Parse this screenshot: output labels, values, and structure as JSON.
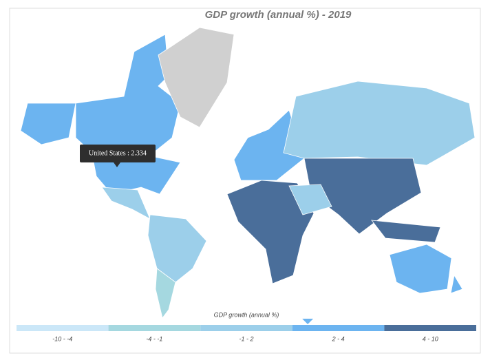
{
  "title": "GDP growth (annual %) - 2019",
  "tooltip": {
    "label": "United States : 2.334",
    "value": 2.334
  },
  "legend": {
    "title": "GDP growth (annual %)",
    "items": [
      {
        "range": [
          -10,
          -4
        ],
        "label": "-10 - -4",
        "color": "#cbe7f8"
      },
      {
        "range": [
          -4,
          -1
        ],
        "label": "-4 - -1",
        "color": "#a5d8e0"
      },
      {
        "range": [
          -1,
          2
        ],
        "label": "-1 - 2",
        "color": "#9ccfea"
      },
      {
        "range": [
          2,
          4
        ],
        "label": "2 - 4",
        "color": "#6cb4f0"
      },
      {
        "range": [
          4,
          10
        ],
        "label": "4 - 10",
        "color": "#4a6e9a"
      }
    ]
  }
}
